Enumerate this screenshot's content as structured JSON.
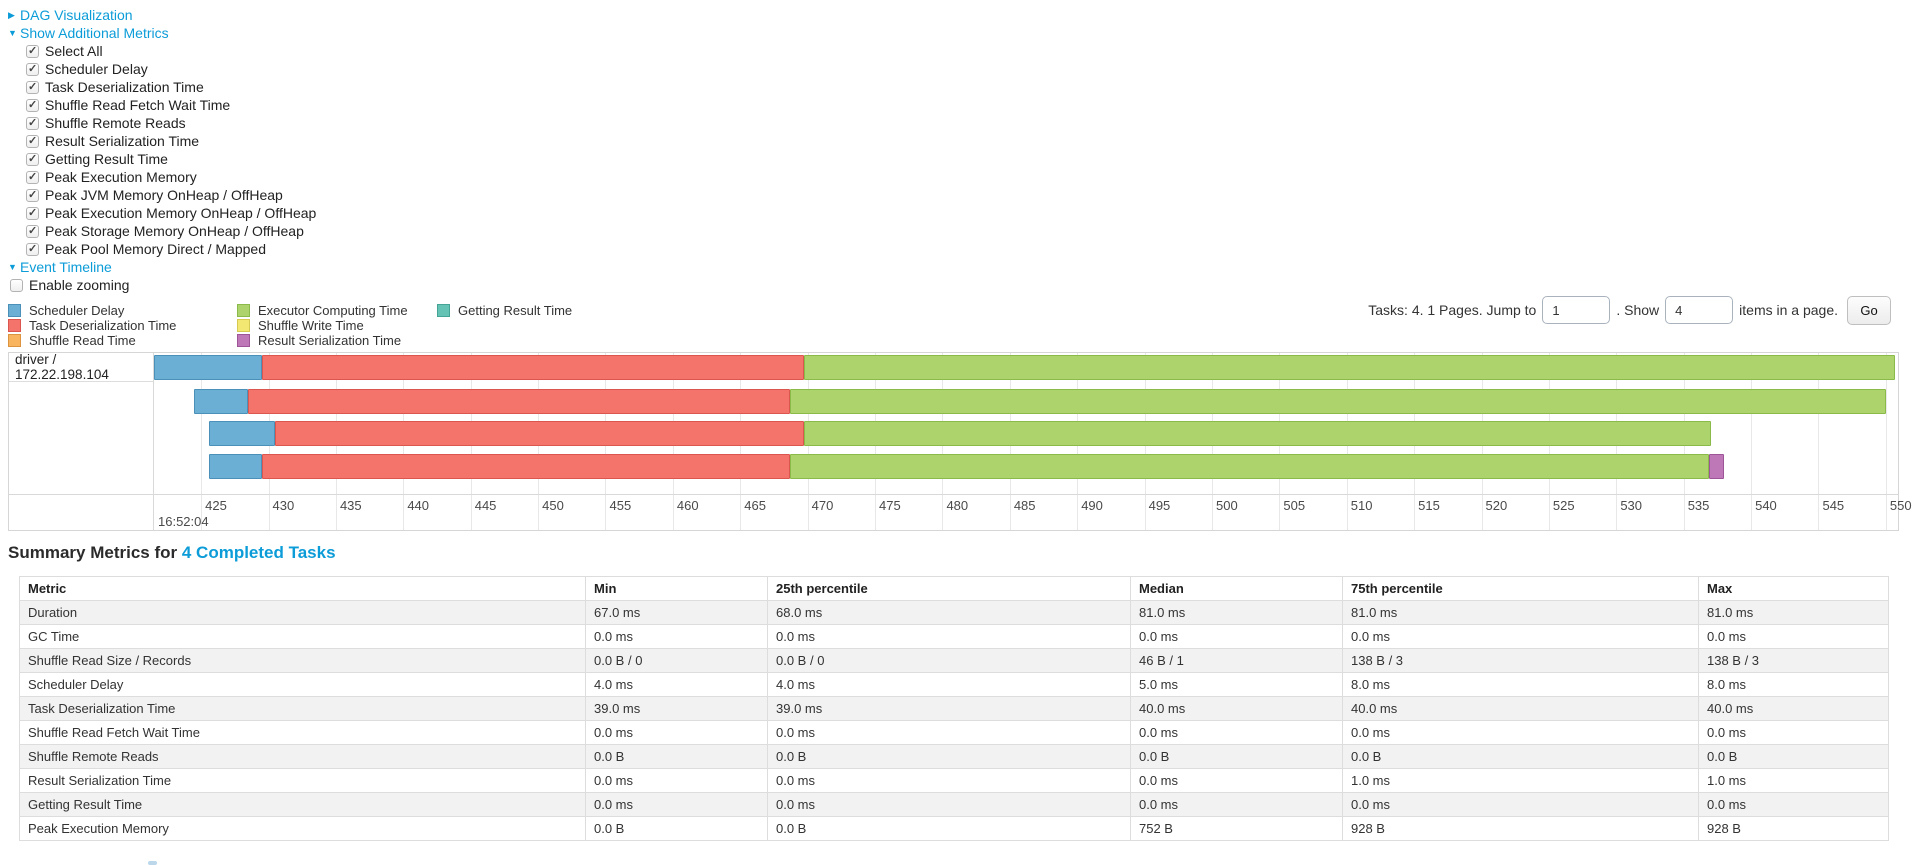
{
  "colors": {
    "link": "#0c9cd8",
    "scheduler_delay": {
      "label": "Scheduler Delay",
      "fill": "#6CAFD4",
      "border": "#4A90B8"
    },
    "task_deserialization": {
      "label": "Task Deserialization Time",
      "fill": "#F4736B",
      "border": "#DB564F"
    },
    "shuffle_read": {
      "label": "Shuffle Read Time",
      "fill": "#F8B45F",
      "border": "#DD9440"
    },
    "executor_computing": {
      "label": "Executor Computing Time",
      "fill": "#ADD36C",
      "border": "#8BBA4A"
    },
    "shuffle_write": {
      "label": "Shuffle Write Time",
      "fill": "#F3E972",
      "border": "#D6CB52"
    },
    "result_serialization": {
      "label": "Result Serialization Time",
      "fill": "#BE77B7",
      "border": "#9E5598"
    },
    "getting_result": {
      "label": "Getting Result Time",
      "fill": "#64C3B4",
      "border": "#45A493"
    }
  },
  "controls": {
    "dag_toggle": {
      "label": "DAG Visualization",
      "state": "collapsed"
    },
    "metrics_toggle": {
      "label": "Show Additional Metrics",
      "state": "expanded"
    },
    "metric_checkboxes": [
      {
        "label": "Select All",
        "checked": true
      },
      {
        "label": "Scheduler Delay",
        "checked": true
      },
      {
        "label": "Task Deserialization Time",
        "checked": true
      },
      {
        "label": "Shuffle Read Fetch Wait Time",
        "checked": true
      },
      {
        "label": "Shuffle Remote Reads",
        "checked": true
      },
      {
        "label": "Result Serialization Time",
        "checked": true
      },
      {
        "label": "Getting Result Time",
        "checked": true
      },
      {
        "label": "Peak Execution Memory",
        "checked": true
      },
      {
        "label": "Peak JVM Memory OnHeap / OffHeap",
        "checked": true
      },
      {
        "label": "Peak Execution Memory OnHeap / OffHeap",
        "checked": true
      },
      {
        "label": "Peak Storage Memory OnHeap / OffHeap",
        "checked": true
      },
      {
        "label": "Peak Pool Memory Direct / Mapped",
        "checked": true
      }
    ],
    "event_timeline_toggle": {
      "label": "Event Timeline",
      "state": "expanded"
    },
    "enable_zooming": {
      "label": "Enable zooming",
      "checked": false
    }
  },
  "legend": {
    "columns": [
      [
        "scheduler_delay",
        "task_deserialization",
        "shuffle_read"
      ],
      [
        "executor_computing",
        "shuffle_write",
        "result_serialization"
      ],
      [
        "getting_result"
      ]
    ]
  },
  "pagination": {
    "prefix": "Tasks: 4. 1 Pages. Jump to",
    "jump_value": "1",
    "mid": ". Show",
    "show_value": "4",
    "suffix": "items in a page.",
    "go_label": "Go"
  },
  "chart_data": {
    "type": "timeline",
    "group": "driver / 172.22.198.104",
    "x_axis": {
      "unit": "ms within second",
      "second_label": "16:52:04",
      "min": 421.5,
      "max": 550.9,
      "ticks": [
        425,
        430,
        435,
        440,
        445,
        450,
        455,
        460,
        465,
        470,
        475,
        480,
        485,
        490,
        495,
        500,
        505,
        510,
        515,
        520,
        525,
        530,
        535,
        540,
        545,
        550
      ]
    },
    "tasks": [
      {
        "segments": [
          {
            "metric": "scheduler_delay",
            "start": 421.5,
            "end": 429.5
          },
          {
            "metric": "task_deserialization",
            "start": 429.5,
            "end": 469.7
          },
          {
            "metric": "executor_computing",
            "start": 469.7,
            "end": 550.7
          }
        ]
      },
      {
        "segments": [
          {
            "metric": "scheduler_delay",
            "start": 424.5,
            "end": 428.5
          },
          {
            "metric": "task_deserialization",
            "start": 428.5,
            "end": 468.7
          },
          {
            "metric": "executor_computing",
            "start": 468.7,
            "end": 550.0
          }
        ]
      },
      {
        "segments": [
          {
            "metric": "scheduler_delay",
            "start": 425.6,
            "end": 430.5
          },
          {
            "metric": "task_deserialization",
            "start": 430.5,
            "end": 469.7
          },
          {
            "metric": "executor_computing",
            "start": 469.7,
            "end": 537.0
          }
        ]
      },
      {
        "segments": [
          {
            "metric": "scheduler_delay",
            "start": 425.6,
            "end": 429.5
          },
          {
            "metric": "task_deserialization",
            "start": 429.5,
            "end": 468.7
          },
          {
            "metric": "executor_computing",
            "start": 468.7,
            "end": 536.9
          },
          {
            "metric": "result_serialization",
            "start": 536.9,
            "end": 538.0
          }
        ]
      }
    ]
  },
  "summary": {
    "title_prefix": "Summary Metrics for",
    "title_link": "4 Completed Tasks",
    "columns": [
      "Metric",
      "Min",
      "25th percentile",
      "Median",
      "75th percentile",
      "Max"
    ],
    "rows": [
      [
        "Duration",
        "67.0 ms",
        "68.0 ms",
        "81.0 ms",
        "81.0 ms",
        "81.0 ms"
      ],
      [
        "GC Time",
        "0.0 ms",
        "0.0 ms",
        "0.0 ms",
        "0.0 ms",
        "0.0 ms"
      ],
      [
        "Shuffle Read Size / Records",
        "0.0 B / 0",
        "0.0 B / 0",
        "46 B / 1",
        "138 B / 3",
        "138 B / 3"
      ],
      [
        "Scheduler Delay",
        "4.0 ms",
        "4.0 ms",
        "5.0 ms",
        "8.0 ms",
        "8.0 ms"
      ],
      [
        "Task Deserialization Time",
        "39.0 ms",
        "39.0 ms",
        "40.0 ms",
        "40.0 ms",
        "40.0 ms"
      ],
      [
        "Shuffle Read Fetch Wait Time",
        "0.0 ms",
        "0.0 ms",
        "0.0 ms",
        "0.0 ms",
        "0.0 ms"
      ],
      [
        "Shuffle Remote Reads",
        "0.0 B",
        "0.0 B",
        "0.0 B",
        "0.0 B",
        "0.0 B"
      ],
      [
        "Result Serialization Time",
        "0.0 ms",
        "0.0 ms",
        "0.0 ms",
        "1.0 ms",
        "1.0 ms"
      ],
      [
        "Getting Result Time",
        "0.0 ms",
        "0.0 ms",
        "0.0 ms",
        "0.0 ms",
        "0.0 ms"
      ],
      [
        "Peak Execution Memory",
        "0.0 B",
        "0.0 B",
        "752 B",
        "928 B",
        "928 B"
      ]
    ]
  }
}
